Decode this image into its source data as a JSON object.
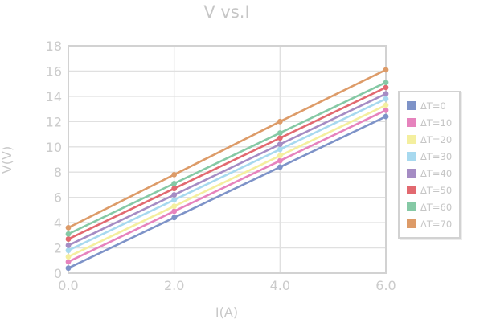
{
  "chart_data": {
    "type": "line",
    "title": "V vs.I",
    "xlabel": "I(A)",
    "ylabel": "V(V)",
    "xlim": [
      0,
      6
    ],
    "ylim": [
      0,
      18
    ],
    "grid": true,
    "legend_position": "right",
    "x": [
      0,
      2,
      4,
      6
    ],
    "x_ticks": {
      "values": [
        0,
        2,
        4,
        6
      ],
      "labels": [
        "0.0",
        "2.0",
        "4.0",
        "6.0"
      ]
    },
    "y_ticks": {
      "values": [
        0,
        2,
        4,
        6,
        8,
        10,
        12,
        14,
        16,
        18
      ],
      "labels": [
        "0",
        "2",
        "4",
        "6",
        "8",
        "10",
        "12",
        "14",
        "16",
        "18"
      ]
    },
    "series": [
      {
        "name": "ΔT=0",
        "color": "#7e93c8",
        "values": [
          0.4,
          4.4,
          8.4,
          12.4
        ]
      },
      {
        "name": "ΔT=10",
        "color": "#e683bd",
        "values": [
          0.9,
          4.9,
          8.9,
          12.9
        ]
      },
      {
        "name": "ΔT=20",
        "color": "#f4ef9f",
        "values": [
          1.3,
          5.3,
          9.3,
          13.3
        ]
      },
      {
        "name": "ΔT=30",
        "color": "#a7d9ef",
        "values": [
          1.8,
          5.8,
          9.8,
          13.8
        ]
      },
      {
        "name": "ΔT=40",
        "color": "#a58cc4",
        "values": [
          2.2,
          6.2,
          10.2,
          14.2
        ]
      },
      {
        "name": "ΔT=50",
        "color": "#e26970",
        "values": [
          2.7,
          6.7,
          10.7,
          14.7
        ]
      },
      {
        "name": "ΔT=60",
        "color": "#85c9a5",
        "values": [
          3.1,
          7.1,
          11.1,
          15.1
        ]
      },
      {
        "name": "ΔT=70",
        "color": "#dd9b68",
        "values": [
          3.6,
          7.8,
          12.0,
          16.1
        ]
      }
    ],
    "style": {
      "text_color": "#c8c8c8",
      "grid_color": "#e0e0e0",
      "border_color": "#d2d2d2",
      "background": "#ffffff"
    }
  }
}
